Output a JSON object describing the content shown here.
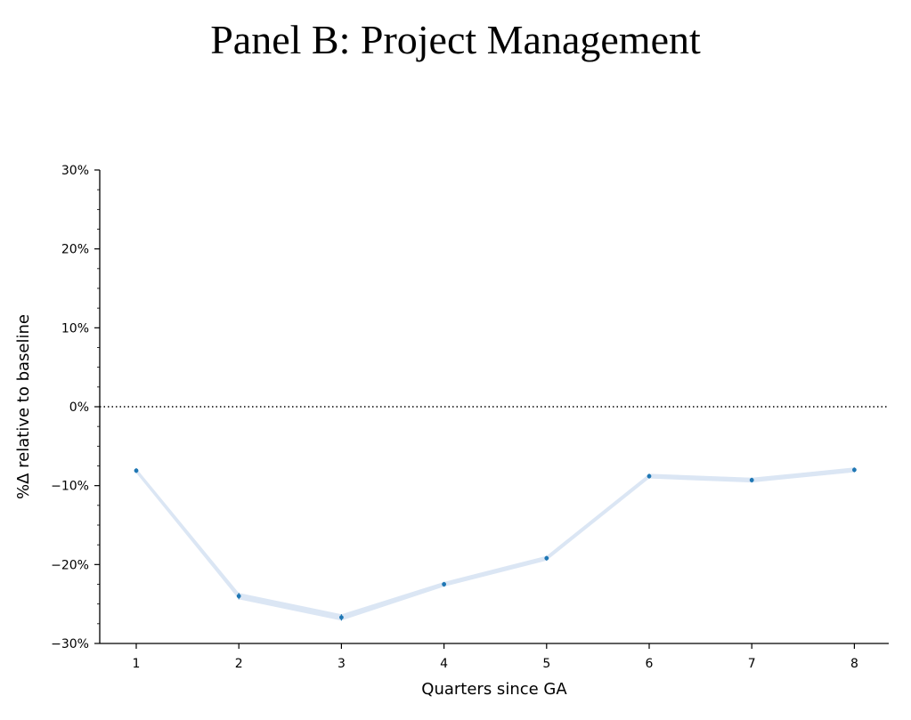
{
  "title": "Panel B: Project Management",
  "chart_data": {
    "type": "line",
    "title": "Panel B: Project Management",
    "xlabel": "Quarters since GA",
    "ylabel": "%Δ relative to baseline",
    "x": [
      1,
      2,
      3,
      4,
      5,
      6,
      7,
      8
    ],
    "x_tick_labels": [
      "1",
      "2",
      "3",
      "4",
      "5",
      "6",
      "7",
      "8"
    ],
    "series": [
      {
        "values": [
          -8.1,
          -24.0,
          -26.7,
          -22.5,
          -19.2,
          -8.8,
          -9.3,
          -8.0
        ],
        "ci_lower": [
          -8.4,
          -24.4,
          -27.1,
          -22.8,
          -19.5,
          -9.1,
          -9.6,
          -8.3
        ],
        "ci_upper": [
          -7.8,
          -23.6,
          -26.3,
          -22.2,
          -18.9,
          -8.5,
          -9.0,
          -7.7
        ],
        "color": "#1f77b4",
        "band_color": "#dbe6f4"
      }
    ],
    "ylim": [
      -30,
      30
    ],
    "y_ticks": [
      -30,
      -20,
      -10,
      0,
      10,
      20,
      30
    ],
    "y_tick_labels": [
      "−30%",
      "−20%",
      "−10%",
      "0%",
      "10%",
      "20%",
      "30%"
    ],
    "reference_line": {
      "y": 0,
      "style": "dotted"
    },
    "grid": false,
    "legend": "none"
  }
}
